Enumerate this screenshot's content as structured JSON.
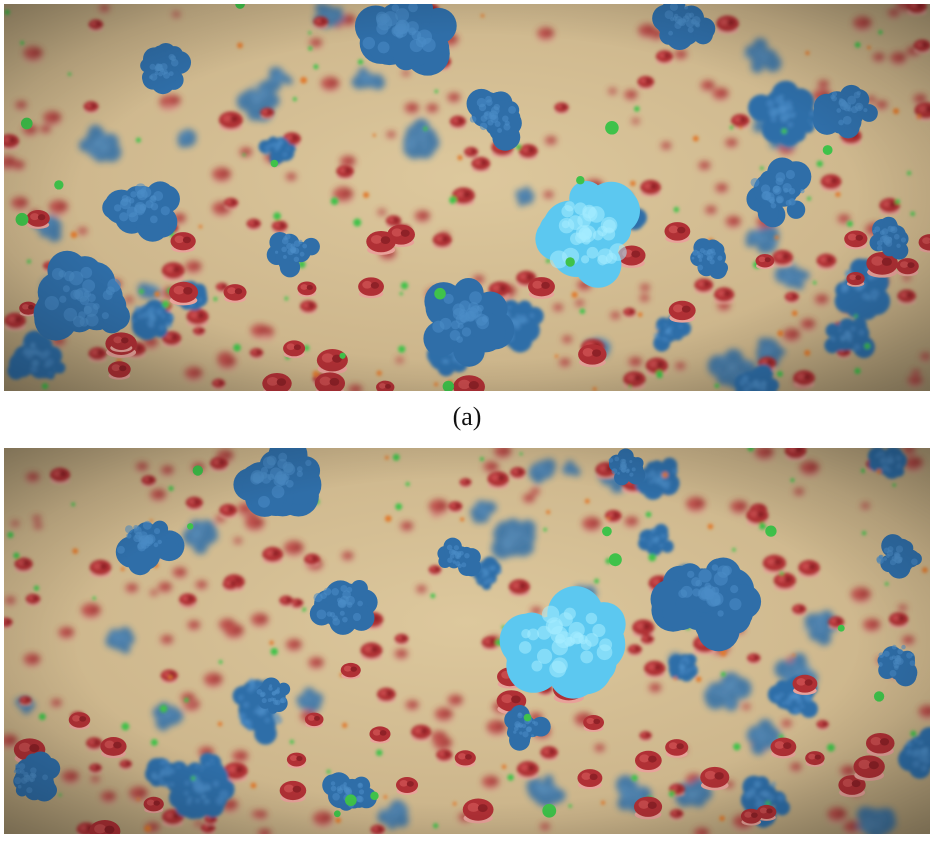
{
  "figure": {
    "panels": [
      {
        "caption": "(a)"
      },
      {
        "caption": ""
      }
    ]
  },
  "colors": {
    "background_membrane": "#cbb48a",
    "large_protein_blue": "#2f6ea8",
    "highlighted_protein_cyan": "#5cc8f0",
    "small_protein_red": "#b03035",
    "small_molecule_green": "#3fc24a",
    "small_molecule_orange": "#e07a2e"
  }
}
